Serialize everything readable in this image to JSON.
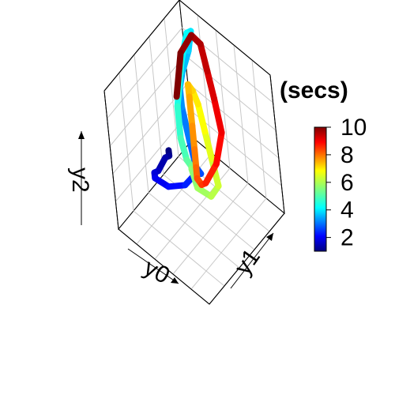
{
  "chart_data": {
    "type": "line",
    "subtype": "3d-trajectory",
    "title": "",
    "axes": {
      "x_label": "y0",
      "y_label": "y1",
      "z_label": "y2"
    },
    "box": "full",
    "grid": true,
    "colorbar": {
      "title": "(secs)",
      "range": [
        1,
        10
      ],
      "ticks": [
        "2",
        "4",
        "6",
        "8",
        "10"
      ],
      "palette": "jet",
      "placement": "right"
    },
    "series": [
      {
        "color_value_start": 1,
        "color_value_end": 10,
        "points": [
          [
            0.3,
            0.0,
            0.95
          ],
          [
            0.35,
            0.05,
            0.85
          ],
          [
            0.45,
            0.1,
            0.75
          ],
          [
            0.55,
            0.1,
            0.6
          ],
          [
            0.65,
            0.15,
            0.5
          ],
          [
            0.7,
            0.2,
            0.4
          ],
          [
            0.65,
            0.3,
            0.3
          ],
          [
            0.55,
            0.4,
            0.3
          ],
          [
            0.5,
            0.5,
            0.35
          ],
          [
            0.55,
            0.6,
            0.25
          ],
          [
            0.7,
            0.7,
            0.15
          ],
          [
            0.85,
            0.8,
            0.2
          ],
          [
            0.95,
            0.85,
            0.35
          ],
          [
            0.9,
            0.8,
            0.55
          ],
          [
            0.8,
            0.75,
            0.75
          ],
          [
            0.75,
            0.8,
            0.9
          ],
          [
            0.8,
            0.9,
            0.95
          ],
          [
            0.9,
            0.95,
            0.85
          ],
          [
            0.95,
            0.9,
            0.65
          ],
          [
            0.9,
            0.75,
            0.45
          ],
          [
            0.75,
            0.6,
            0.4
          ],
          [
            0.55,
            0.45,
            0.45
          ],
          [
            0.4,
            0.35,
            0.55
          ],
          [
            0.3,
            0.25,
            0.65
          ],
          [
            0.2,
            0.2,
            0.6
          ],
          [
            0.15,
            0.3,
            0.5
          ],
          [
            0.2,
            0.45,
            0.45
          ],
          [
            0.35,
            0.55,
            0.5
          ],
          [
            0.5,
            0.65,
            0.55
          ],
          [
            0.65,
            0.75,
            0.6
          ],
          [
            0.8,
            0.85,
            0.55
          ],
          [
            0.95,
            0.95,
            0.45
          ],
          [
            1.0,
            1.0,
            0.3
          ],
          [
            0.95,
            0.95,
            0.15
          ],
          [
            0.85,
            0.85,
            0.1
          ],
          [
            0.7,
            0.7,
            0.15
          ],
          [
            0.55,
            0.55,
            0.25
          ],
          [
            0.4,
            0.45,
            0.35
          ],
          [
            0.3,
            0.4,
            0.45
          ],
          [
            0.25,
            0.5,
            0.55
          ],
          [
            0.3,
            0.65,
            0.65
          ],
          [
            0.45,
            0.75,
            0.75
          ],
          [
            0.6,
            0.85,
            0.8
          ],
          [
            0.75,
            0.95,
            0.85
          ],
          [
            0.9,
            1.0,
            0.8
          ],
          [
            1.0,
            0.95,
            0.65
          ],
          [
            1.0,
            0.85,
            0.4
          ]
        ]
      }
    ]
  }
}
